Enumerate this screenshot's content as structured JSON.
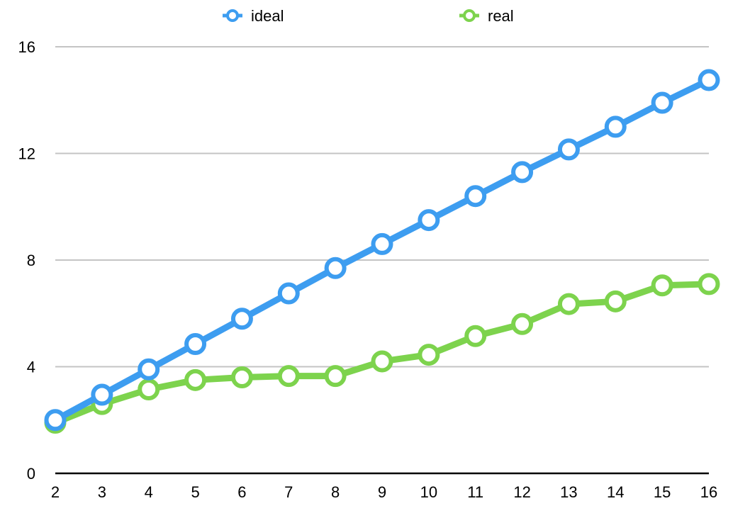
{
  "chart_data": {
    "type": "line",
    "title": "",
    "xlabel": "",
    "ylabel": "",
    "x": [
      2,
      3,
      4,
      5,
      6,
      7,
      8,
      9,
      10,
      11,
      12,
      13,
      14,
      15,
      16
    ],
    "ylim": [
      0,
      16
    ],
    "yticks": [
      0,
      4,
      8,
      12,
      16
    ],
    "grid": true,
    "legend_position": "top",
    "series": [
      {
        "name": "ideal",
        "color": "#3d9df0",
        "values": [
          2.0,
          2.95,
          3.9,
          4.85,
          5.8,
          6.75,
          7.7,
          8.6,
          9.5,
          10.4,
          11.3,
          12.15,
          13.0,
          13.9,
          14.75
        ]
      },
      {
        "name": "real",
        "color": "#7dd34d",
        "values": [
          1.9,
          2.6,
          3.15,
          3.5,
          3.6,
          3.65,
          3.65,
          4.2,
          4.45,
          5.15,
          5.6,
          6.35,
          6.45,
          7.05,
          7.1
        ]
      }
    ]
  }
}
